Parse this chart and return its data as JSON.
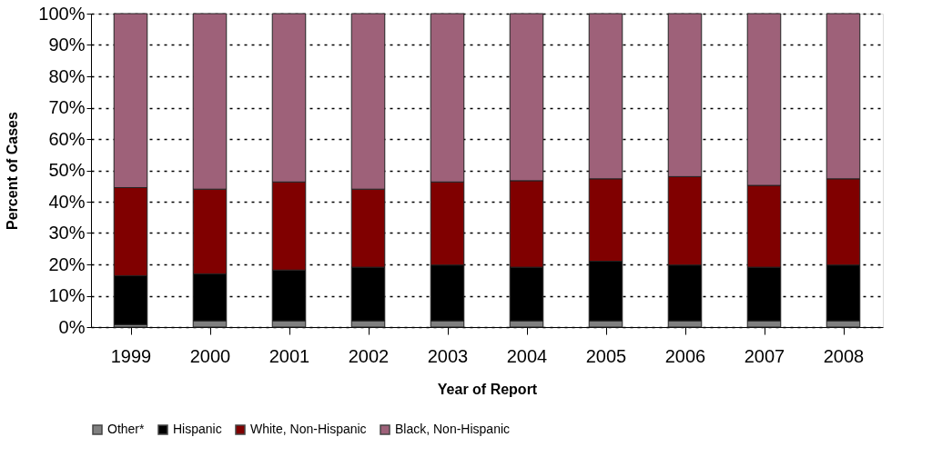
{
  "chart_data": {
    "type": "bar",
    "stacked": true,
    "xlabel": "Year of Report",
    "ylabel": "Percent of Cases",
    "categories": [
      "1999",
      "2000",
      "2001",
      "2002",
      "2003",
      "2004",
      "2005",
      "2006",
      "2007",
      "2008"
    ],
    "series": [
      {
        "name": "Other*",
        "color": "#808080",
        "values": [
          0.8,
          2,
          2,
          2,
          2,
          2,
          2,
          2,
          2,
          2
        ]
      },
      {
        "name": "Hispanic",
        "color": "#000000",
        "values": [
          15.6,
          15,
          16.2,
          17.1,
          17.8,
          17.1,
          19,
          17.8,
          17.1,
          17.8
        ]
      },
      {
        "name": "White, Non-Hispanic",
        "color": "#800000",
        "values": [
          28.1,
          27,
          28.1,
          24.9,
          26.5,
          27.6,
          26.3,
          28.2,
          26.1,
          27.5
        ]
      },
      {
        "name": "Black, Non-Hispanic",
        "color": "#9e6179",
        "values": [
          55.5,
          56,
          53.7,
          56,
          53.7,
          53.3,
          52.7,
          52,
          54.8,
          52.7
        ]
      }
    ],
    "ylim": [
      0,
      100
    ],
    "yticks": [
      {
        "value": 0,
        "label": "0%"
      },
      {
        "value": 10,
        "label": "10%"
      },
      {
        "value": 20,
        "label": "20%"
      },
      {
        "value": 30,
        "label": "30%"
      },
      {
        "value": 40,
        "label": "40%"
      },
      {
        "value": 50,
        "label": "50%"
      },
      {
        "value": 60,
        "label": "60%"
      },
      {
        "value": 70,
        "label": "70%"
      },
      {
        "value": 80,
        "label": "80%"
      },
      {
        "value": 90,
        "label": "90%"
      },
      {
        "value": 100,
        "label": "100%"
      }
    ],
    "grid": "y",
    "legend": "bottom"
  }
}
